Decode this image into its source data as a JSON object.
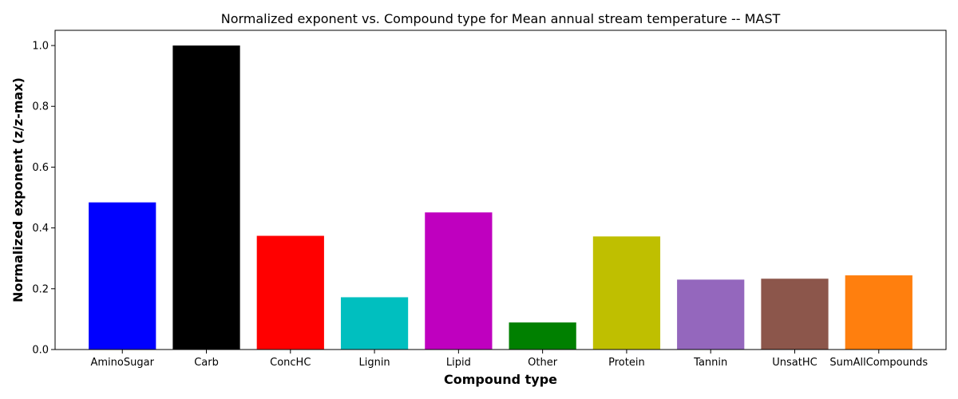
{
  "chart_data": {
    "type": "bar",
    "title": "Normalized exponent vs. Compound type for Mean annual stream temperature -- MAST",
    "xlabel": "Compound type",
    "ylabel": "Normalized exponent (z/z-max)",
    "categories": [
      "AminoSugar",
      "Carb",
      "ConcHC",
      "Lignin",
      "Lipid",
      "Other",
      "Protein",
      "Tannin",
      "UnsatHC",
      "SumAllCompounds"
    ],
    "values": [
      0.484,
      1.0,
      0.374,
      0.172,
      0.451,
      0.089,
      0.372,
      0.23,
      0.233,
      0.244
    ],
    "colors": [
      "#0000ff",
      "#000000",
      "#ff0000",
      "#00bfbf",
      "#bf00bf",
      "#008000",
      "#bfbf00",
      "#9467bd",
      "#8c564b",
      "#ff7f0e"
    ],
    "ylim": [
      0,
      1.05
    ],
    "yticks": [
      "0.0",
      "0.2",
      "0.4",
      "0.6",
      "0.8",
      "1.0"
    ],
    "grid": false,
    "legend": "none"
  }
}
